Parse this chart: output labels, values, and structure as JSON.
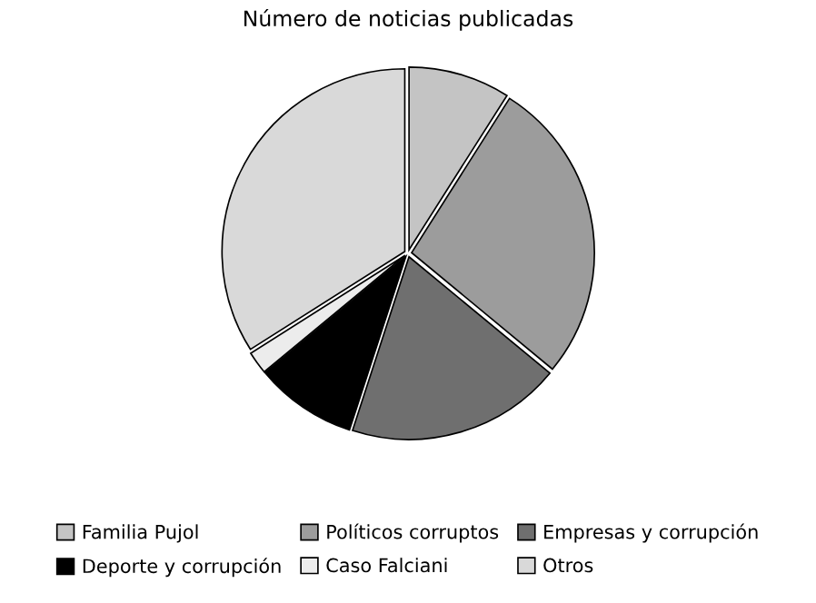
{
  "chart_data": {
    "type": "pie",
    "title": "Número de noticias publicadas",
    "categories": [
      "Familia Pujol",
      "Políticos corruptos",
      "Empresas y corrupción",
      "Deporte y corrupción",
      "Caso Falciani",
      "Otros"
    ],
    "values": [
      9,
      27,
      19,
      9,
      2,
      34
    ],
    "colors": [
      "#c4c4c4",
      "#9c9c9c",
      "#6f6f6f",
      "#000000",
      "#ececec",
      "#d9d9d9"
    ],
    "legend": "bottom"
  }
}
